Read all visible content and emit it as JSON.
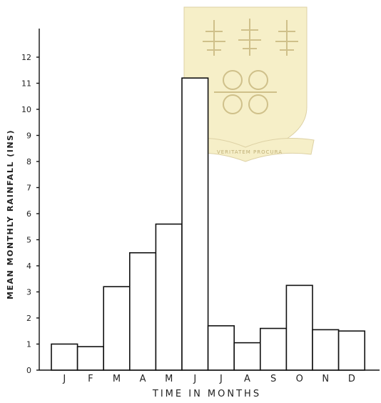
{
  "chart_data": {
    "type": "bar",
    "title": "",
    "xlabel": "TIME IN MONTHS",
    "ylabel": "MEAN MONTHLY RAINFALL (INS)",
    "categories": [
      "J",
      "F",
      "M",
      "A",
      "M",
      "J",
      "J",
      "A",
      "S",
      "O",
      "N",
      "D"
    ],
    "values": [
      1.0,
      0.9,
      3.2,
      4.5,
      5.6,
      11.2,
      1.7,
      1.05,
      1.6,
      3.25,
      1.55,
      1.5
    ],
    "yticks": [
      "0",
      "1",
      "2",
      "3",
      "4",
      "5",
      "6",
      "7",
      "8",
      "9",
      "10",
      "11",
      "12"
    ],
    "ylim": [
      0,
      12
    ],
    "grid": false,
    "legend": "none",
    "bar_fill": "#ffffff",
    "bar_stroke": "#111111"
  },
  "watermark": {
    "icon": "university-crest-icon",
    "color": "#f6efc8",
    "motto": "VERITATEM PROCURA"
  }
}
